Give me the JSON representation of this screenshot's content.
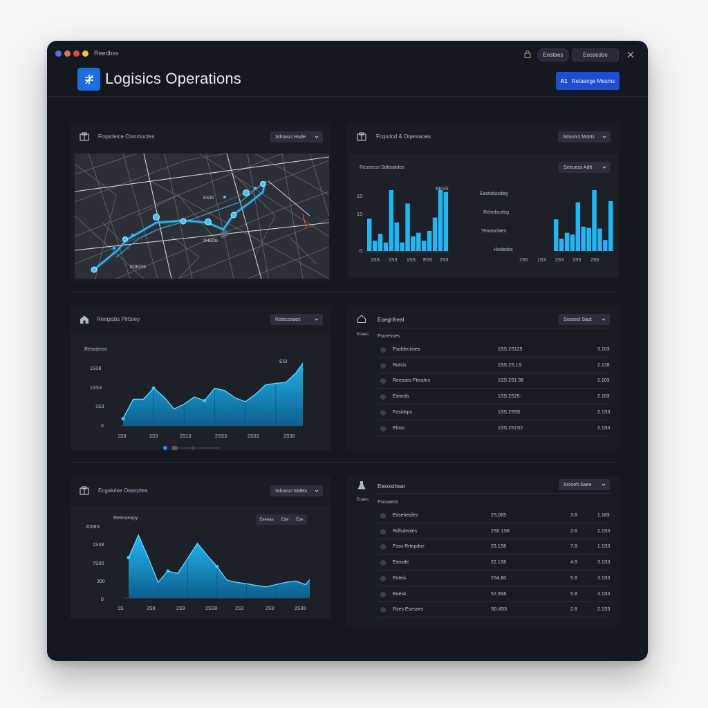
{
  "window": {
    "app_name": "Reedbss",
    "btn_left": "Eestaes",
    "btn_right": "Eossedoe",
    "traffic_colors": [
      "#5a6cd6",
      "#e9714c",
      "#e0474c",
      "#f0c13c"
    ]
  },
  "header": {
    "title": "Logisics Operations",
    "primary_button": "Retaenge Mesms",
    "primary_button_icon": "A1"
  },
  "panel_map": {
    "title": "Foqsdeice Ctsnmuctes",
    "dropdown": "Sdoasct Hude",
    "labels": [
      "ES3S",
      "SHEDG",
      "EDE03S"
    ]
  },
  "panel_bars": {
    "title": "Fcqsdcd & Oqersaoes",
    "dropdown": "Sdsunct Mdnts",
    "sub_title": "Reseecst Sdteaddes",
    "sub_dropdown": "Seeuess Adtt",
    "left_chart": {
      "legend": "EESS",
      "ytick_labels": [
        "1S",
        "1S",
        "0"
      ],
      "xtick_labels": [
        "1SS",
        "1S3",
        "1SS",
        "E0S",
        "2S3"
      ]
    },
    "right_chart": {
      "ylabels": [
        "Eastsdusdeg",
        "Reledscebg",
        "Tetoearlaes",
        "Hodedss"
      ],
      "xtick_labels": [
        "1S5",
        "1S3",
        "2S3",
        "1S5",
        "2S5"
      ]
    }
  },
  "panel_area1": {
    "title": "Reegisbs Pirbsey",
    "dropdown": "Rotecssaes",
    "ylabel": "Resodeiss",
    "corner_label": "ESI",
    "ytick_labels": [
      "1S38",
      "1SS3",
      "1S3",
      "0"
    ],
    "xtick_labels": [
      "1S3",
      "2S3",
      "2S13",
      "2SS3",
      "2S03",
      "2S38"
    ]
  },
  "panel_table1": {
    "title": "Eoegriheal",
    "dropdown": "Sossecl Saot",
    "header": "Fsoresses",
    "rows": [
      {
        "name": "Fsoldecimes",
        "mid": "1SS 2S125",
        "right": "3.103"
      },
      {
        "name": "Rotsis",
        "mid": "1SS 2S.1S",
        "right": "2.128"
      },
      {
        "name": "Reesses Ftesdes",
        "mid": "1SS 2S1 98",
        "right": "2.103"
      },
      {
        "name": "Esneds",
        "mid": "1SS 2S25-",
        "right": "2.103"
      },
      {
        "name": "Fosidsps",
        "mid": "1SS 2S9S",
        "right": "2.1S3"
      },
      {
        "name": "Eloss",
        "mid": "1SS 2S1S2",
        "right": "2.1S3"
      }
    ]
  },
  "panel_area2": {
    "title": "Ecgaioise Ossrqrtes",
    "dropdown": "Sdoasct Mdets",
    "ylabel": "Reeoseapy",
    "segment": [
      "Eeeeas",
      "Ede",
      "Ese"
    ],
    "ytick_labels": [
      "2008S",
      "1S38",
      "7S00",
      "300",
      "0"
    ],
    "xtick_labels": [
      "1S",
      "2S9",
      "2S9",
      "2SS8",
      "2S3",
      "2S3",
      "2S38"
    ]
  },
  "panel_table2": {
    "title": "Eesosthsar",
    "dropdown": "Sroseh Saee",
    "header": "Fsosaess",
    "rows": [
      {
        "name": "Esseheoles",
        "mid": "2S.005",
        "c3": "3.8",
        "right": "1.183"
      },
      {
        "name": "Rdfsdeoies",
        "mid": "2S0.1S8",
        "c3": "2.6",
        "right": "2.1S3"
      },
      {
        "name": "Fsso Rrtepdoe",
        "mid": "23.1S8",
        "c3": "7.8",
        "right": "1.1S3"
      },
      {
        "name": "Esnsde",
        "mid": "22.1S8",
        "c3": "4.8",
        "right": "3.1S3"
      },
      {
        "name": "Eoteis",
        "mid": "2S4.80",
        "c3": "5.8",
        "right": "3.1S3"
      },
      {
        "name": "Eoesk",
        "mid": "52.3S8",
        "c3": "5.8",
        "right": "3.1S3"
      },
      {
        "name": "Rses Esesses",
        "mid": "S0.4S3",
        "c3": "2.8",
        "right": "2.1S3"
      }
    ]
  },
  "chart_data": [
    {
      "type": "bar",
      "categories": [
        "1",
        "2",
        "3",
        "4",
        "5",
        "6",
        "7",
        "8",
        "9",
        "10",
        "11",
        "12",
        "13",
        "14",
        "15"
      ],
      "values": [
        53,
        17,
        28,
        14,
        100,
        47,
        14,
        78,
        24,
        30,
        17,
        33,
        55,
        100,
        97
      ],
      "ylim": [
        0,
        100
      ]
    },
    {
      "type": "bar",
      "categories": [
        "1",
        "2",
        "3",
        "4",
        "5",
        "6",
        "7",
        "8",
        "9",
        "10",
        "11",
        "12",
        "13",
        "14",
        "15"
      ],
      "values": [
        52,
        20,
        30,
        27,
        80,
        40,
        38,
        100,
        37,
        18,
        82,
        35,
        82,
        80,
        53
      ],
      "ylim": [
        0,
        100
      ]
    },
    {
      "type": "area",
      "x": [
        0,
        1,
        2,
        3,
        4,
        5,
        6,
        7,
        8,
        9,
        10,
        11,
        12,
        13,
        14,
        15,
        16,
        17,
        18
      ],
      "values": [
        15,
        55,
        55,
        78,
        60,
        35,
        45,
        60,
        52,
        78,
        73,
        58,
        50,
        65,
        85,
        88,
        90,
        110,
        140
      ],
      "ylim": [
        0,
        150
      ]
    },
    {
      "type": "area",
      "x": [
        0,
        1,
        2,
        3,
        4,
        5,
        6,
        7,
        8,
        9,
        10,
        11,
        12,
        13,
        14,
        15,
        16,
        17,
        18,
        19
      ],
      "values": [
        90,
        140,
        90,
        35,
        60,
        55,
        88,
        122,
        95,
        70,
        40,
        35,
        32,
        28,
        25,
        30,
        35,
        38,
        30,
        55
      ],
      "ylim": [
        0,
        160
      ]
    }
  ]
}
